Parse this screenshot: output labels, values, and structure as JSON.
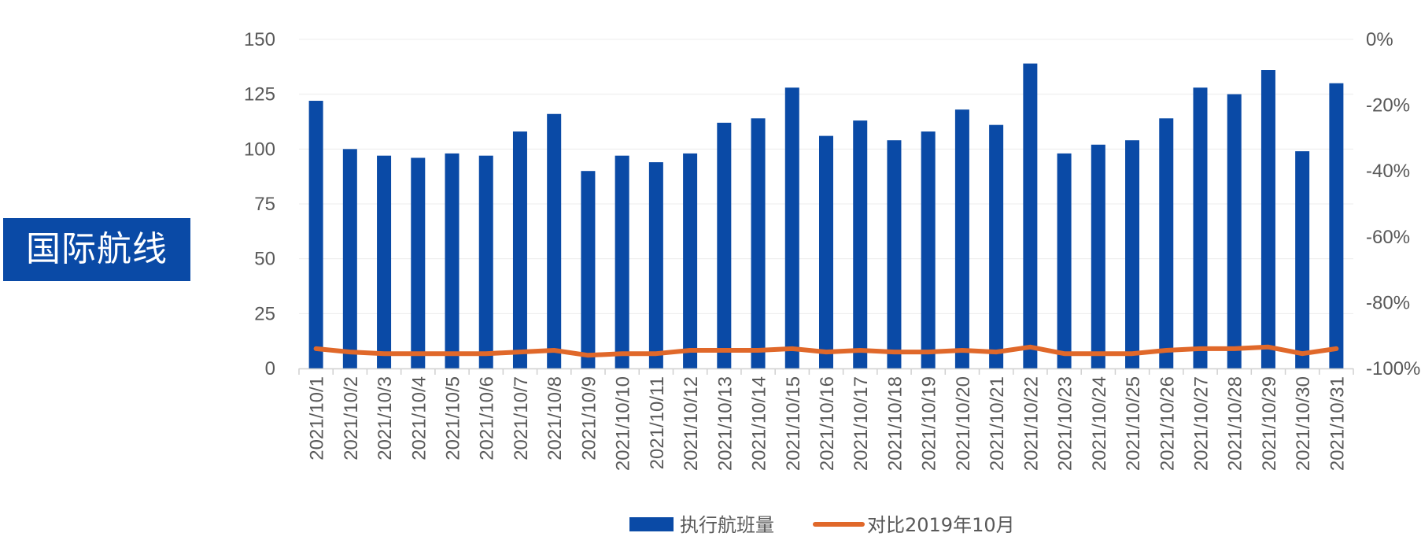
{
  "badge": {
    "label": "国际航线"
  },
  "colors": {
    "bar": "#0a4aa6",
    "line": "#e0682a",
    "badge_bg": "#0a4aa6",
    "axis_text": "#595959"
  },
  "chart_data": {
    "type": "bar",
    "title": "",
    "xlabel": "",
    "ylabel": "",
    "categories": [
      "2021/10/1",
      "2021/10/2",
      "2021/10/3",
      "2021/10/4",
      "2021/10/5",
      "2021/10/6",
      "2021/10/7",
      "2021/10/8",
      "2021/10/9",
      "2021/10/10",
      "2021/10/11",
      "2021/10/12",
      "2021/10/13",
      "2021/10/14",
      "2021/10/15",
      "2021/10/16",
      "2021/10/17",
      "2021/10/18",
      "2021/10/19",
      "2021/10/20",
      "2021/10/21",
      "2021/10/22",
      "2021/10/23",
      "2021/10/24",
      "2021/10/25",
      "2021/10/26",
      "2021/10/27",
      "2021/10/28",
      "2021/10/29",
      "2021/10/30",
      "2021/10/31"
    ],
    "ylim": [
      0,
      150
    ],
    "y_ticks": [
      "0",
      "25",
      "50",
      "75",
      "100",
      "125",
      "150"
    ],
    "y_tick_values": [
      0,
      25,
      50,
      75,
      100,
      125,
      150
    ],
    "y2lim": [
      -100,
      0
    ],
    "y2_ticks": [
      "-100%",
      "-80%",
      "-60%",
      "-40%",
      "-20%",
      "0%"
    ],
    "y2_tick_values": [
      -100,
      -80,
      -60,
      -40,
      -20,
      0
    ],
    "legend_position": "bottom",
    "grid": true,
    "series": [
      {
        "name": "执行航班量",
        "kind": "bar",
        "axis": "left",
        "values": [
          122,
          100,
          97,
          96,
          98,
          97,
          108,
          116,
          90,
          97,
          94,
          98,
          112,
          114,
          128,
          106,
          113,
          104,
          108,
          118,
          111,
          139,
          98,
          102,
          104,
          114,
          128,
          125,
          136,
          99,
          130
        ]
      },
      {
        "name": "对比2019年10月",
        "kind": "line",
        "axis": "right",
        "values": [
          -94,
          -95,
          -95.5,
          -95.5,
          -95.5,
          -95.5,
          -95,
          -94.5,
          -96,
          -95.5,
          -95.5,
          -94.5,
          -94.5,
          -94.5,
          -94,
          -95,
          -94.5,
          -95,
          -95,
          -94.5,
          -95,
          -93.5,
          -95.5,
          -95.5,
          -95.5,
          -94.5,
          -94,
          -94,
          -93.5,
          -95.5,
          -94
        ]
      }
    ]
  }
}
